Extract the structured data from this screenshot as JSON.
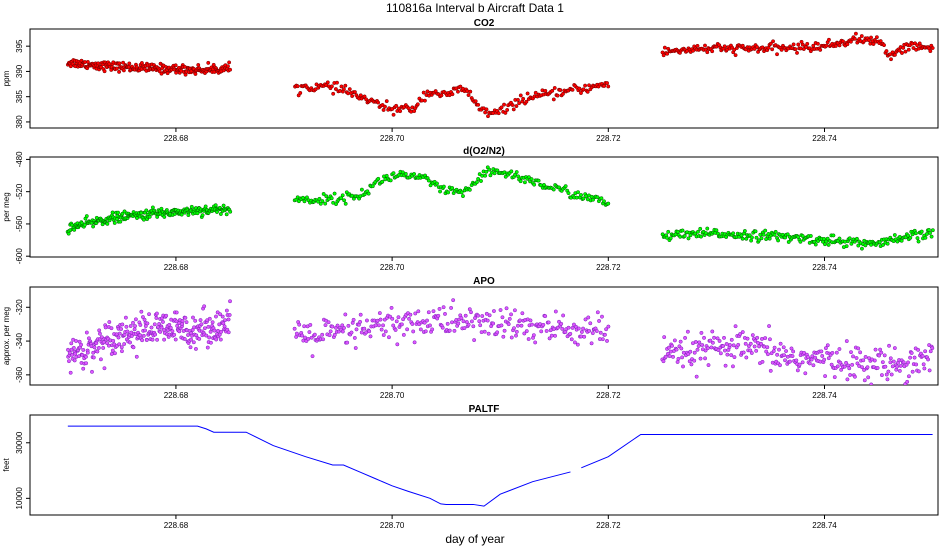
{
  "figure": {
    "title": "110816a   Interval b Aircraft Data 1",
    "xlabel": "day of year"
  },
  "chart_data": [
    {
      "type": "scatter",
      "title": "CO2",
      "ylabel": "ppm",
      "color": "#ff0000",
      "edge_color": "#6b0000",
      "xlim": [
        228.6665,
        228.7505
      ],
      "ylim": [
        378.8,
        398.4
      ],
      "xticks": [
        228.68,
        228.7,
        228.72,
        228.74
      ],
      "xtick_labels": [
        "228.68",
        "228.70",
        "228.72",
        "228.74"
      ],
      "yticks": [
        380,
        385,
        390,
        395
      ],
      "ytick_labels": [
        "380",
        "385",
        "390",
        "395"
      ],
      "noise": 0.45,
      "points_per_segment": 230,
      "segments": [
        {
          "x": [
            228.67,
            228.674,
            228.678,
            228.682,
            228.685
          ],
          "y": [
            391.8,
            391.0,
            390.6,
            390.3,
            390.6
          ]
        },
        {
          "x": [
            228.691,
            228.694,
            228.696,
            228.698,
            228.7,
            228.702,
            228.703,
            228.704,
            228.705,
            228.706,
            228.707,
            228.708,
            228.709,
            228.71,
            228.712,
            228.716,
            228.72
          ],
          "y": [
            386.8,
            387.0,
            386.0,
            384.0,
            382.5,
            382.6,
            385.5,
            386.0,
            385.0,
            386.5,
            386.0,
            383.0,
            381.5,
            382.0,
            384.5,
            386.0,
            387.5
          ]
        },
        {
          "x": [
            228.725,
            228.728,
            228.732,
            228.736,
            228.74,
            228.743,
            228.745,
            228.746,
            228.747,
            228.748,
            228.75
          ],
          "y": [
            393.8,
            394.5,
            394.5,
            394.6,
            395.0,
            396.4,
            396.0,
            393.0,
            394.5,
            395.0,
            394.5
          ]
        }
      ]
    },
    {
      "type": "scatter",
      "title": "d(O2/N2)",
      "ylabel": "per meg",
      "color": "#00ff00",
      "edge_color": "#005a00",
      "xlim": [
        228.6665,
        228.7505
      ],
      "ylim": [
        -601,
        -477
      ],
      "xticks": [
        228.68,
        228.7,
        228.72,
        228.74
      ],
      "xtick_labels": [
        "228.68",
        "228.70",
        "228.72",
        "228.74"
      ],
      "yticks": [
        -600,
        -560,
        -520,
        -480
      ],
      "ytick_labels": [
        "-600",
        "-560",
        "-520",
        "-480"
      ],
      "noise": 3,
      "points_per_segment": 230,
      "segments": [
        {
          "x": [
            228.67,
            228.674,
            228.678,
            228.682,
            228.685
          ],
          "y": [
            -565,
            -553,
            -547,
            -543,
            -542
          ]
        },
        {
          "x": [
            228.691,
            228.694,
            228.697,
            228.699,
            228.701,
            228.703,
            228.705,
            228.707,
            228.708,
            228.709,
            228.711,
            228.714,
            228.717,
            228.72
          ],
          "y": [
            -530,
            -530,
            -525,
            -505,
            -498,
            -505,
            -520,
            -520,
            -505,
            -495,
            -498,
            -512,
            -523,
            -535
          ]
        },
        {
          "x": [
            228.725,
            228.73,
            228.735,
            228.74,
            228.745,
            228.747,
            228.748,
            228.75
          ],
          "y": [
            -575,
            -572,
            -575,
            -580,
            -585,
            -579,
            -575,
            -572
          ]
        }
      ]
    },
    {
      "type": "scatter",
      "title": "APO",
      "ylabel": "approx. per meg",
      "color": "#dd55ff",
      "edge_color": "#7a20b8",
      "xlim": [
        228.6665,
        228.7505
      ],
      "ylim": [
        -366,
        -308
      ],
      "xticks": [
        228.68,
        228.7,
        228.72,
        228.74
      ],
      "xtick_labels": [
        "228.68",
        "228.70",
        "228.72",
        "228.74"
      ],
      "yticks": [
        -360,
        -340,
        -320
      ],
      "ytick_labels": [
        "-360",
        "-340",
        "-320"
      ],
      "noise": 5,
      "points_per_segment": 300,
      "segments": [
        {
          "x": [
            228.67,
            228.672,
            228.674,
            228.678,
            228.682,
            228.685
          ],
          "y": [
            -348,
            -345,
            -337,
            -333,
            -333,
            -330
          ]
        },
        {
          "x": [
            228.691,
            228.695,
            228.7,
            228.705,
            228.71,
            228.715,
            228.72
          ],
          "y": [
            -337,
            -336,
            -330,
            -328,
            -330,
            -333,
            -334
          ]
        },
        {
          "x": [
            228.725,
            228.729,
            228.733,
            228.737,
            228.741,
            228.745,
            228.748,
            228.75
          ],
          "y": [
            -350,
            -345,
            -344,
            -350,
            -352,
            -354,
            -352,
            -348
          ]
        }
      ]
    },
    {
      "type": "line",
      "title": "PALTF",
      "ylabel": "feet",
      "color": "#0000ff",
      "xlim": [
        228.6665,
        228.7505
      ],
      "ylim": [
        4000,
        40000
      ],
      "xticks": [
        228.68,
        228.7,
        228.72,
        228.74
      ],
      "xtick_labels": [
        "228.68",
        "228.70",
        "228.72",
        "228.74"
      ],
      "yticks": [
        10000,
        30000
      ],
      "ytick_labels": [
        "10000",
        "30000"
      ],
      "segments": [
        {
          "x": [
            228.67,
            228.682,
            228.6828,
            228.6835,
            228.6865,
            228.689,
            228.692,
            228.6945,
            228.6955,
            228.697,
            228.6985,
            228.7,
            228.7015,
            228.7035,
            228.7045,
            228.705,
            228.706,
            228.7075,
            228.7085,
            228.71,
            228.713,
            228.7165
          ],
          "y": [
            36000,
            36000,
            35000,
            33800,
            33800,
            29000,
            25000,
            22000,
            22000,
            19500,
            17000,
            14500,
            12500,
            10000,
            8000,
            7800,
            7800,
            7800,
            7200,
            11500,
            16000,
            19500
          ]
        },
        {
          "x": [
            228.7175,
            228.72,
            228.723,
            228.75
          ],
          "y": [
            21000,
            25000,
            33000,
            33000
          ]
        }
      ]
    }
  ]
}
